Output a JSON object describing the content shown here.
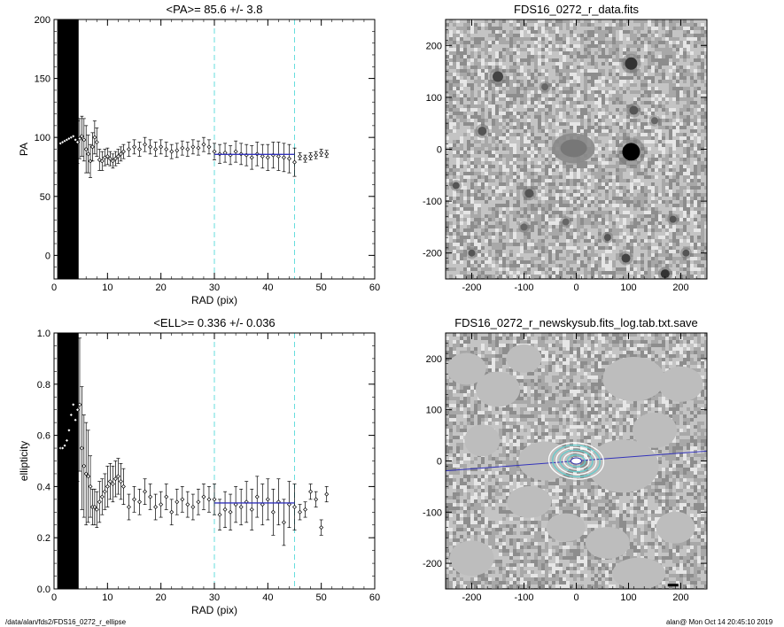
{
  "chart_data": [
    {
      "id": "pa",
      "type": "scatter",
      "title": "<PA>= 85.6 +/-  3.8",
      "xlabel": "RAD (pix)",
      "ylabel": "PA",
      "xlim": [
        0,
        60
      ],
      "ylim": [
        -20,
        200
      ],
      "xticks": [
        "0",
        "10",
        "20",
        "30",
        "40",
        "50",
        "60"
      ],
      "yticks": [
        "0",
        "50",
        "100",
        "150",
        "200"
      ],
      "vlines": [
        30,
        45
      ],
      "fit": {
        "x0": 30,
        "x1": 45,
        "y": 85.6
      },
      "x": [
        1.2,
        1.6,
        2.0,
        2.4,
        2.8,
        3.2,
        3.6,
        4.0,
        4.4,
        4.8,
        5.2,
        5.6,
        6.0,
        6.4,
        6.8,
        7.2,
        7.6,
        8.0,
        8.5,
        9.0,
        9.5,
        10.0,
        10.5,
        11.0,
        11.5,
        12.0,
        12.5,
        13.0,
        14.0,
        15.0,
        16.0,
        17.0,
        18.0,
        19.0,
        20.0,
        21.0,
        22.0,
        23.0,
        24.0,
        25.0,
        26.0,
        27.0,
        28.0,
        29.0,
        30.0,
        31.0,
        32.0,
        33.0,
        34.0,
        35.0,
        36.0,
        37.0,
        38.0,
        39.0,
        40.0,
        41.0,
        42.0,
        43.0,
        44.0,
        45.0,
        46.0,
        47.0,
        48.0,
        49.0,
        50.0,
        51.0
      ],
      "y": [
        95,
        96,
        97,
        98,
        99,
        100,
        101,
        98,
        96,
        99,
        101,
        98,
        90,
        86,
        80,
        92,
        100,
        96,
        81,
        80,
        83,
        84,
        82,
        80,
        82,
        84,
        86,
        88,
        90,
        92,
        90,
        94,
        92,
        90,
        92,
        90,
        88,
        89,
        91,
        90,
        92,
        91,
        94,
        92,
        88,
        86,
        87,
        85,
        88,
        86,
        85,
        83,
        86,
        84,
        83,
        85,
        84,
        83,
        82,
        79,
        84,
        82,
        84,
        85,
        87,
        86
      ],
      "err": [
        15,
        15,
        16,
        16,
        17,
        17,
        18,
        18,
        18,
        17,
        17,
        18,
        20,
        16,
        14,
        12,
        14,
        12,
        9,
        8,
        7,
        7,
        6,
        6,
        6,
        6,
        6,
        6,
        6,
        6,
        6,
        6,
        6,
        6,
        6,
        6,
        6,
        6,
        6,
        6,
        6,
        6,
        6,
        6,
        7,
        8,
        8,
        8,
        9,
        9,
        9,
        10,
        10,
        10,
        11,
        11,
        12,
        12,
        12,
        12,
        3,
        3,
        3,
        3,
        3,
        3
      ]
    },
    {
      "id": "ell",
      "type": "scatter",
      "title": "<ELL>= 0.336 +/-  0.036",
      "xlabel": "RAD (pix)",
      "ylabel": "ellipticity",
      "xlim": [
        0,
        60
      ],
      "ylim": [
        0,
        1
      ],
      "xticks": [
        "0",
        "10",
        "20",
        "30",
        "40",
        "50",
        "60"
      ],
      "yticks": [
        "0.0",
        "0.2",
        "0.4",
        "0.6",
        "0.8",
        "1.0"
      ],
      "vlines": [
        30,
        45
      ],
      "fit": {
        "x0": 30,
        "x1": 45,
        "y": 0.336
      },
      "x": [
        1.2,
        1.6,
        2.0,
        2.4,
        2.8,
        3.2,
        3.6,
        4.0,
        4.4,
        4.8,
        5.2,
        5.6,
        6.0,
        6.4,
        6.8,
        7.2,
        7.6,
        8.0,
        8.5,
        9.0,
        9.5,
        10.0,
        10.5,
        11.0,
        11.5,
        12.0,
        12.5,
        13.0,
        14.0,
        15.0,
        16.0,
        17.0,
        18.0,
        19.0,
        20.0,
        21.0,
        22.0,
        23.0,
        24.0,
        25.0,
        26.0,
        27.0,
        28.0,
        29.0,
        30.0,
        31.0,
        32.0,
        33.0,
        34.0,
        35.0,
        36.0,
        37.0,
        38.0,
        39.0,
        40.0,
        41.0,
        42.0,
        43.0,
        44.0,
        45.0,
        46.0,
        47.0,
        48.0,
        49.0,
        50.0,
        51.0
      ],
      "y": [
        0.55,
        0.55,
        0.56,
        0.58,
        0.62,
        0.68,
        0.72,
        0.66,
        0.7,
        0.72,
        0.55,
        0.48,
        0.45,
        0.44,
        0.4,
        0.32,
        0.32,
        0.31,
        0.34,
        0.36,
        0.38,
        0.4,
        0.42,
        0.41,
        0.43,
        0.44,
        0.42,
        0.4,
        0.32,
        0.35,
        0.34,
        0.38,
        0.36,
        0.32,
        0.33,
        0.36,
        0.3,
        0.34,
        0.35,
        0.33,
        0.32,
        0.34,
        0.36,
        0.35,
        0.35,
        0.29,
        0.31,
        0.3,
        0.33,
        0.32,
        0.34,
        0.31,
        0.36,
        0.33,
        0.35,
        0.3,
        0.34,
        0.26,
        0.33,
        0.32,
        0.3,
        0.31,
        0.38,
        0.35,
        0.24,
        0.37
      ],
      "err": [
        0.3,
        0.3,
        0.32,
        0.32,
        0.33,
        0.33,
        0.32,
        0.3,
        0.28,
        0.26,
        0.24,
        0.2,
        0.2,
        0.18,
        0.12,
        0.07,
        0.07,
        0.07,
        0.08,
        0.07,
        0.07,
        0.08,
        0.07,
        0.07,
        0.07,
        0.07,
        0.07,
        0.07,
        0.05,
        0.05,
        0.05,
        0.05,
        0.05,
        0.05,
        0.05,
        0.05,
        0.05,
        0.05,
        0.05,
        0.05,
        0.05,
        0.05,
        0.05,
        0.05,
        0.06,
        0.06,
        0.07,
        0.07,
        0.07,
        0.07,
        0.08,
        0.08,
        0.08,
        0.08,
        0.08,
        0.09,
        0.09,
        0.09,
        0.09,
        0.09,
        0.03,
        0.03,
        0.03,
        0.03,
        0.03,
        0.03
      ]
    },
    {
      "id": "img1",
      "type": "heatmap",
      "title": "FDS16_0272_r_data.fits",
      "xlim": [
        -250,
        250
      ],
      "ylim": [
        -250,
        250
      ],
      "xticks": [
        "-200",
        "-100",
        "0",
        "100",
        "200"
      ],
      "yticks": [
        "-200",
        "-100",
        "0",
        "100",
        "200"
      ]
    },
    {
      "id": "img2",
      "type": "heatmap",
      "title": "FDS16_0272_r_newskysub.fits_log.tab.txt.save",
      "xlim": [
        -250,
        250
      ],
      "ylim": [
        -250,
        250
      ],
      "xticks": [
        "-200",
        "-100",
        "0",
        "100",
        "200"
      ],
      "yticks": [
        "-200",
        "-100",
        "0",
        "100",
        "200"
      ]
    }
  ],
  "footer": {
    "path": "/data/alan/fds2/FDS16_0272_r_ellipse",
    "stamp": "alan@  Mon Oct 14 20:45:10 2019"
  },
  "colors": {
    "fit_line": "#3333bb",
    "vline": "#66dddd",
    "contour": "#66cccc"
  }
}
